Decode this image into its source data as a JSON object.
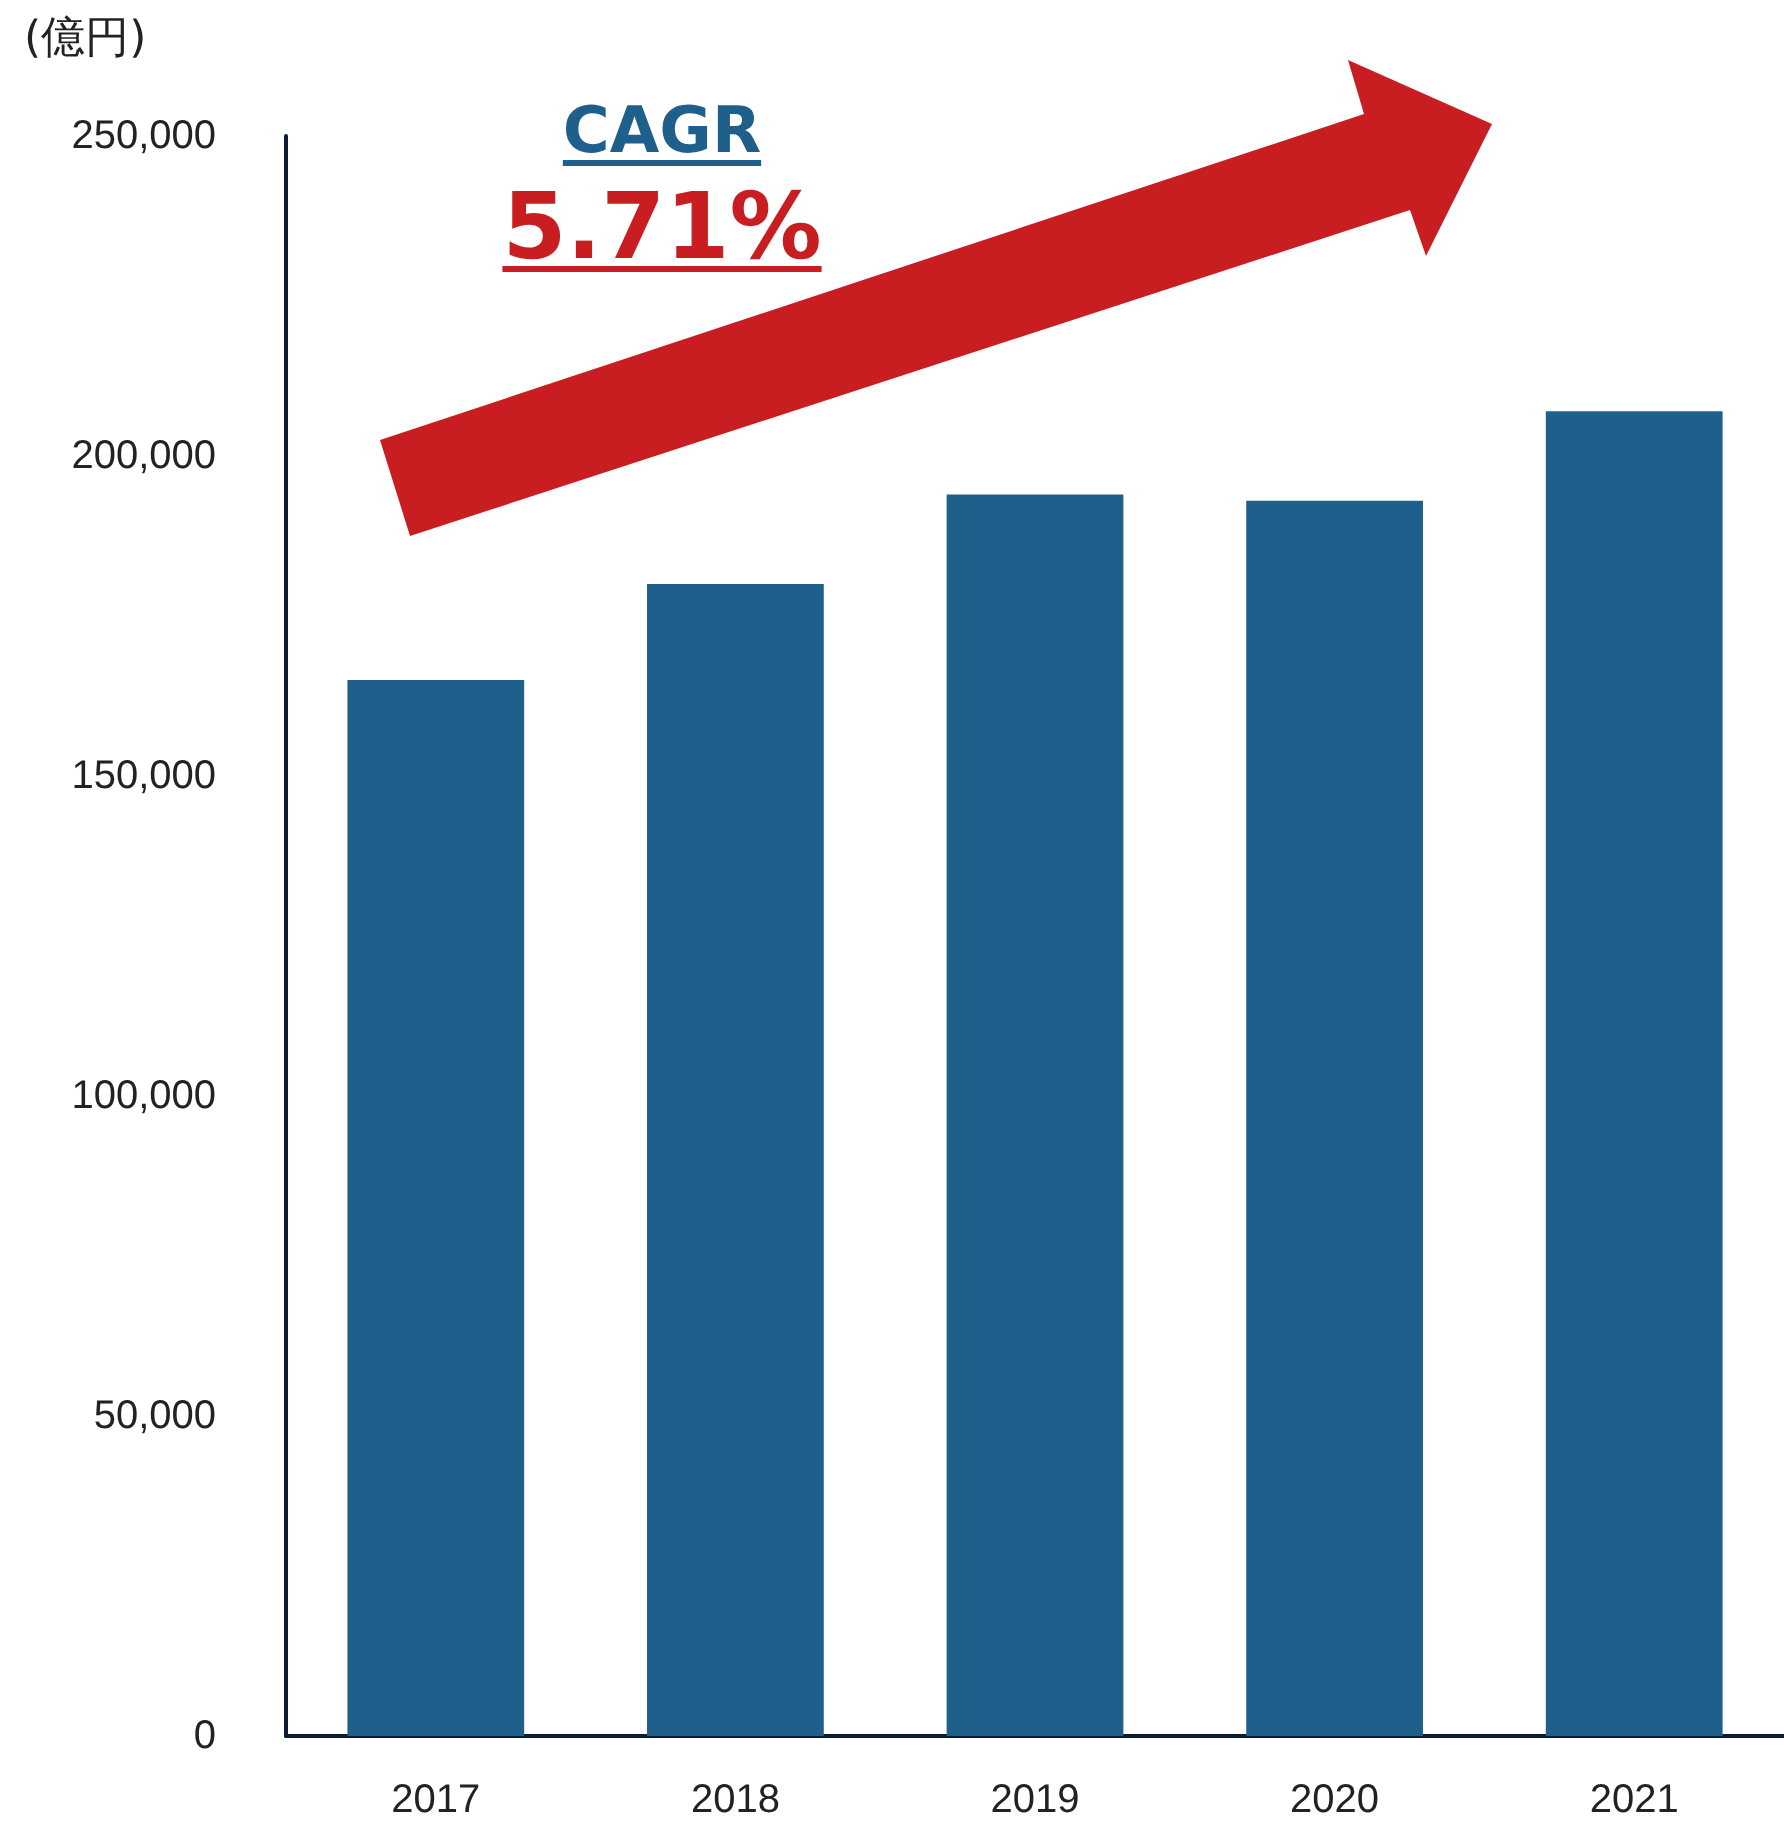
{
  "chart_data": {
    "type": "bar",
    "ylabel": "(億円)",
    "categories": [
      "2017",
      "2018",
      "2019",
      "2020",
      "2021"
    ],
    "values": [
      165000,
      180000,
      194000,
      193000,
      207000
    ],
    "color": "#1f5f8b",
    "ylim": [
      0,
      250000
    ],
    "yticks": [
      0,
      {
        "value": 50000,
        "label": "50,000"
      },
      {
        "value": 100000,
        "label": "100,000"
      },
      {
        "value": 150000,
        "label": "150,000"
      },
      {
        "value": 200000,
        "label": "200,000"
      },
      {
        "value": 250000,
        "label": "250,000"
      }
    ],
    "grid": false,
    "annotations": [
      "CAGR",
      "5.71%"
    ]
  }
}
